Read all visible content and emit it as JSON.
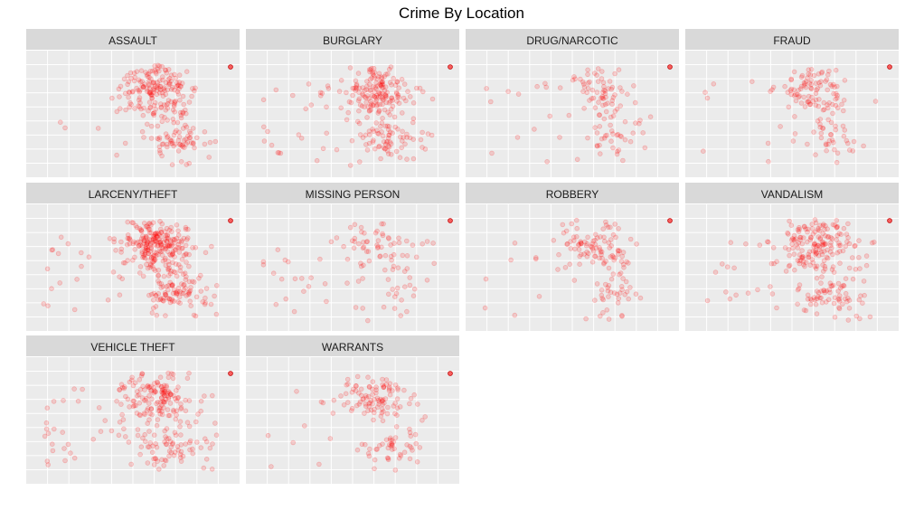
{
  "title": "Crime By Location",
  "chart_data": {
    "type": "scatter",
    "title": "Crime By Location",
    "xlabel": "",
    "ylabel": "",
    "grid": true,
    "facets": [
      "ASSAULT",
      "BURGLARY",
      "DRUG/NARCOTIC",
      "FRAUD",
      "LARCENY/THEFT",
      "MISSING PERSON",
      "ROBBERY",
      "VANDALISM",
      "VEHICLE THEFT",
      "WARRANTS"
    ],
    "facet_columns": 4,
    "point_color": "#ff0000",
    "point_alpha": 0.15,
    "density": [
      1.0,
      1.0,
      0.45,
      0.55,
      1.4,
      0.4,
      0.55,
      1.0,
      1.0,
      0.6
    ],
    "cluster_strength": [
      0.85,
      0.8,
      0.9,
      0.9,
      0.85,
      0.6,
      0.85,
      0.8,
      0.65,
      0.9
    ]
  },
  "colors": {
    "panel_background": "#ebebeb",
    "strip_background": "#d9d9d9",
    "grid": "#ffffff",
    "point": "#ff0000"
  }
}
